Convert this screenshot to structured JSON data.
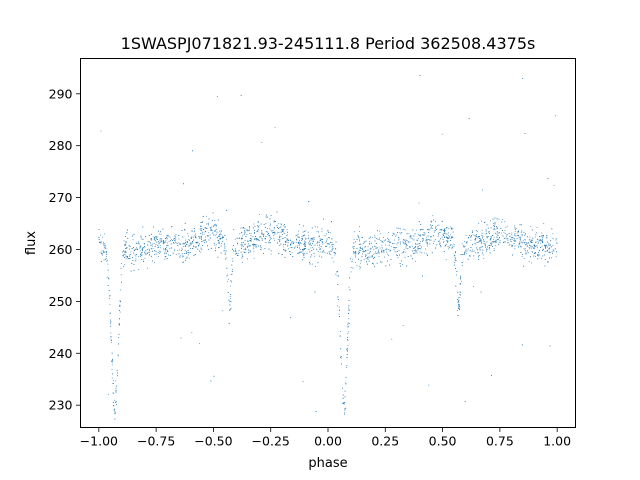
{
  "colors": {
    "background": "#ffffff",
    "axes": "#000000",
    "points": "#1f77b4"
  },
  "chart_data": {
    "type": "scatter",
    "title": "1SWASPJ071821.93-245111.8 Period 362508.4375s",
    "xlabel": "phase",
    "ylabel": "flux",
    "xlim": [
      -1.08,
      1.08
    ],
    "ylim": [
      225.7,
      296.8
    ],
    "xticks": [
      -1.0,
      -0.75,
      -0.5,
      -0.25,
      0.0,
      0.25,
      0.5,
      0.75,
      1.0
    ],
    "xtick_labels": [
      "−1.00",
      "−0.75",
      "−0.50",
      "−0.25",
      "0.00",
      "0.25",
      "0.50",
      "0.75",
      "1.00"
    ],
    "yticks": [
      230,
      240,
      250,
      260,
      270,
      280,
      290
    ],
    "ytick_labels": [
      "230",
      "240",
      "250",
      "260",
      "270",
      "280",
      "290"
    ],
    "grid": false,
    "legend": "none",
    "series": [
      {
        "marker": "point",
        "description_of_shape": "phase-folded light curve, folded twice over phase -1..1",
        "baseline_flux": 261,
        "scatter": 2.5,
        "primary_eclipse": {
          "phase": 0.07,
          "min_flux": 230,
          "width": 0.03
        },
        "secondary_eclipse": {
          "phase": -0.43,
          "min_flux": 247.5,
          "width": 0.015
        },
        "bump_maxima": [
          {
            "phase": -0.52,
            "flux": 263.5
          },
          {
            "phase": -0.25,
            "flux": 263.5
          },
          {
            "phase": 0.48,
            "flux": 263.5
          },
          {
            "phase": 0.75,
            "flux": 263.5
          }
        ],
        "sampled_points": [
          {
            "x": -1.0,
            "y": 262.0
          },
          {
            "x": -0.98,
            "y": 258.5
          },
          {
            "x": -0.95,
            "y": 250.0
          },
          {
            "x": -0.93,
            "y": 240.0
          },
          {
            "x": -0.92,
            "y": 233.0
          },
          {
            "x": -0.9,
            "y": 238.0
          },
          {
            "x": -0.88,
            "y": 252.0
          },
          {
            "x": -0.85,
            "y": 259.0
          },
          {
            "x": -0.8,
            "y": 261.0
          },
          {
            "x": -0.75,
            "y": 262.5
          },
          {
            "x": -0.7,
            "y": 261.5
          },
          {
            "x": -0.6,
            "y": 262.0
          },
          {
            "x": -0.52,
            "y": 266.0
          },
          {
            "x": -0.45,
            "y": 255.0
          },
          {
            "x": -0.43,
            "y": 248.5
          },
          {
            "x": -0.4,
            "y": 262.0
          },
          {
            "x": -0.3,
            "y": 263.0
          },
          {
            "x": -0.25,
            "y": 266.0
          },
          {
            "x": -0.15,
            "y": 261.0
          },
          {
            "x": -0.05,
            "y": 260.5
          },
          {
            "x": 0.0,
            "y": 258.5
          },
          {
            "x": 0.05,
            "y": 248.0
          },
          {
            "x": 0.07,
            "y": 232.0
          },
          {
            "x": 0.1,
            "y": 241.0
          },
          {
            "x": 0.12,
            "y": 253.0
          },
          {
            "x": 0.2,
            "y": 260.5
          },
          {
            "x": 0.25,
            "y": 262.0
          },
          {
            "x": 0.35,
            "y": 261.5
          },
          {
            "x": 0.48,
            "y": 266.0
          },
          {
            "x": 0.55,
            "y": 256.0
          },
          {
            "x": 0.57,
            "y": 248.5
          },
          {
            "x": 0.6,
            "y": 262.0
          },
          {
            "x": 0.7,
            "y": 263.0
          },
          {
            "x": 0.75,
            "y": 266.0
          },
          {
            "x": 0.85,
            "y": 261.0
          },
          {
            "x": 0.95,
            "y": 260.5
          },
          {
            "x": 1.0,
            "y": 259.0
          }
        ]
      }
    ]
  }
}
